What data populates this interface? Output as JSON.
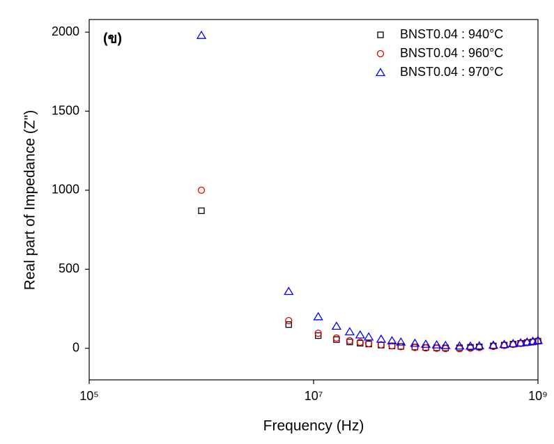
{
  "chart_data": {
    "type": "scatter",
    "annotation": "(ข)",
    "xlabel": "Frequency (Hz)",
    "ylabel": "Real part of Impedance (Z\")",
    "xscale": "log",
    "xlim": [
      100000,
      1000000000
    ],
    "xticks": [
      {
        "value": 100000,
        "label": "10⁵"
      },
      {
        "value": 10000000,
        "label": "10⁷"
      },
      {
        "value": 1000000000,
        "label": "10⁹"
      }
    ],
    "ylim": [
      -200,
      2080
    ],
    "yticks": [
      0,
      500,
      1000,
      1500,
      2000
    ],
    "legend": "top-right",
    "x": [
      1000000,
      6000000,
      11000000,
      16000000,
      21000000,
      26000000,
      31000000,
      40000000,
      50000000,
      60000000,
      80000000,
      100000000,
      125000000,
      150000000,
      200000000,
      250000000,
      300000000,
      400000000,
      500000000,
      600000000,
      700000000,
      800000000,
      900000000,
      1000000000
    ],
    "series": [
      {
        "name": "BNST0.04 : 940°C",
        "color": "#000000",
        "marker": "square",
        "values": [
          870,
          150,
          80,
          55,
          40,
          32,
          27,
          20,
          15,
          12,
          8,
          5,
          3,
          2,
          3,
          6,
          9,
          15,
          20,
          26,
          31,
          36,
          40,
          45
        ]
      },
      {
        "name": "BNST0.04 : 960°C",
        "color": "#e00000",
        "marker": "circle",
        "values": [
          1000,
          175,
          95,
          65,
          48,
          38,
          30,
          22,
          15,
          10,
          5,
          2,
          0,
          -2,
          -3,
          0,
          5,
          12,
          18,
          24,
          30,
          35,
          40,
          45
        ]
      },
      {
        "name": "BNST0.04 : 970°C",
        "color": "#0000ff",
        "marker": "triangle",
        "values": [
          1980,
          360,
          200,
          140,
          105,
          85,
          72,
          58,
          48,
          40,
          32,
          26,
          22,
          18,
          15,
          14,
          16,
          20,
          25,
          30,
          35,
          40,
          45,
          50
        ]
      }
    ]
  }
}
